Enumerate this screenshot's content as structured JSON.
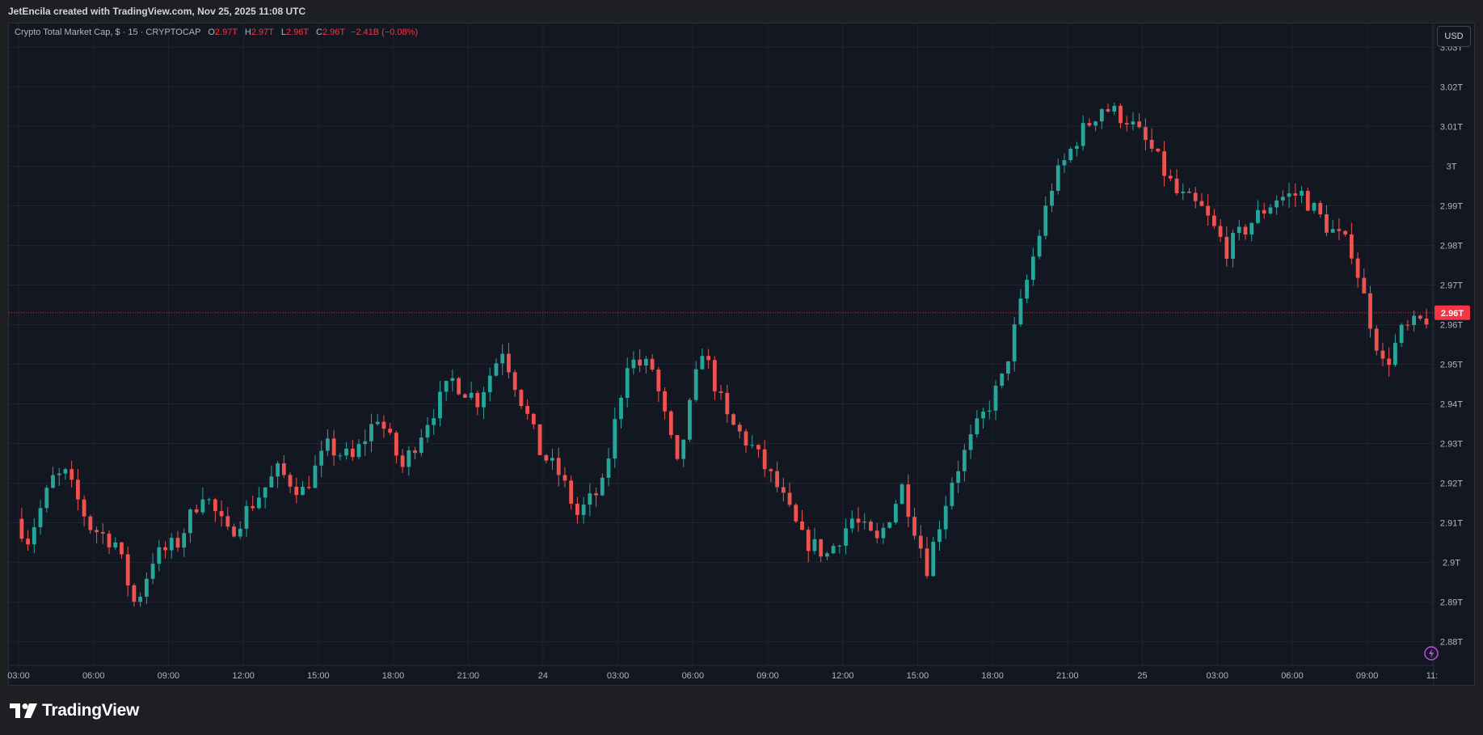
{
  "header": {
    "caption": "JetEncila created with TradingView.com, Nov 25, 2025 11:08 UTC"
  },
  "legend": {
    "symbol": "Crypto Total Market Cap, $ · 15 · CRYPTOCAP",
    "o_label": "O",
    "o_value": "2.97T",
    "h_label": "H",
    "h_value": "2.97T",
    "l_label": "L",
    "l_value": "2.96T",
    "c_label": "C",
    "c_value": "2.96T",
    "change": "−2.41B (−0.08%)"
  },
  "currency_button": "USD",
  "price_tag": "2.96T",
  "footer": {
    "brand": "TradingView"
  },
  "colors": {
    "background": "#131722",
    "up": "#26a69a",
    "down": "#ef5350",
    "grid": "#1f2430",
    "axis_text": "#b2b5be",
    "price_line": "#f23645"
  },
  "chart_data": {
    "type": "candlestick",
    "title": "Crypto Total Market Cap, $ · 15 · CRYPTOCAP",
    "y_unit": "T (trillions USD)",
    "y_range": [
      2.874,
      3.036
    ],
    "y_ticks": [
      2.88,
      2.89,
      2.9,
      2.91,
      2.92,
      2.93,
      2.94,
      2.95,
      2.96,
      2.97,
      2.98,
      2.99,
      3.0,
      3.01,
      3.02,
      3.03
    ],
    "y_tick_labels": [
      "2.88T",
      "2.89T",
      "2.9T",
      "2.91T",
      "2.92T",
      "2.93T",
      "2.94T",
      "2.95T",
      "2.96T",
      "2.97T",
      "2.98T",
      "2.99T",
      "3T",
      "3.01T",
      "3.02T",
      "3.03T"
    ],
    "x_ticks": [
      "03:00",
      "06:00",
      "09:00",
      "12:00",
      "15:00",
      "18:00",
      "21:00",
      "24",
      "03:00",
      "06:00",
      "09:00",
      "12:00",
      "15:00",
      "18:00",
      "21:00",
      "25",
      "03:00",
      "06:00",
      "09:00",
      "11:"
    ],
    "x_tick_hours": [
      3,
      6,
      9,
      12,
      15,
      18,
      21,
      24,
      27,
      30,
      33,
      36,
      39,
      42,
      45,
      48,
      51,
      54,
      57,
      59.6
    ],
    "x_range_hours": [
      3,
      59.6
    ],
    "last_price": 2.963,
    "price_keypoints": [
      [
        3.0,
        2.911
      ],
      [
        3.5,
        2.906
      ],
      [
        4.5,
        2.921
      ],
      [
        5.0,
        2.922
      ],
      [
        6.0,
        2.909
      ],
      [
        7.0,
        2.905
      ],
      [
        7.8,
        2.889
      ],
      [
        8.5,
        2.901
      ],
      [
        9.5,
        2.905
      ],
      [
        10.5,
        2.918
      ],
      [
        11.5,
        2.907
      ],
      [
        12.5,
        2.915
      ],
      [
        13.5,
        2.923
      ],
      [
        14.5,
        2.918
      ],
      [
        15.5,
        2.929
      ],
      [
        16.5,
        2.926
      ],
      [
        17.5,
        2.937
      ],
      [
        18.5,
        2.924
      ],
      [
        19.5,
        2.936
      ],
      [
        20.5,
        2.946
      ],
      [
        21.5,
        2.941
      ],
      [
        22.5,
        2.954
      ],
      [
        23.2,
        2.942
      ],
      [
        24.0,
        2.928
      ],
      [
        24.8,
        2.922
      ],
      [
        25.5,
        2.912
      ],
      [
        26.5,
        2.919
      ],
      [
        27.5,
        2.951
      ],
      [
        28.5,
        2.949
      ],
      [
        29.5,
        2.924
      ],
      [
        30.5,
        2.954
      ],
      [
        31.5,
        2.936
      ],
      [
        32.5,
        2.929
      ],
      [
        33.5,
        2.919
      ],
      [
        34.5,
        2.906
      ],
      [
        35.5,
        2.902
      ],
      [
        36.5,
        2.911
      ],
      [
        37.5,
        2.905
      ],
      [
        38.5,
        2.919
      ],
      [
        39.5,
        2.899
      ],
      [
        40.5,
        2.921
      ],
      [
        41.5,
        2.934
      ],
      [
        42.5,
        2.946
      ],
      [
        43.5,
        2.971
      ],
      [
        44.5,
        2.995
      ],
      [
        45.5,
        3.007
      ],
      [
        46.5,
        3.015
      ],
      [
        47.5,
        3.012
      ],
      [
        48.5,
        3.004
      ],
      [
        49.5,
        2.993
      ],
      [
        50.5,
        2.989
      ],
      [
        51.5,
        2.979
      ],
      [
        52.5,
        2.986
      ],
      [
        53.5,
        2.992
      ],
      [
        54.5,
        2.993
      ],
      [
        55.5,
        2.985
      ],
      [
        56.5,
        2.979
      ],
      [
        57.2,
        2.962
      ],
      [
        57.8,
        2.949
      ],
      [
        58.5,
        2.958
      ],
      [
        59.6,
        2.962
      ]
    ]
  }
}
